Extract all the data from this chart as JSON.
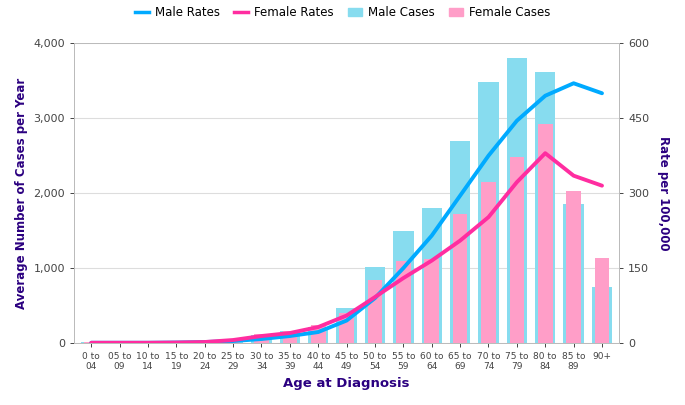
{
  "categories": [
    "0 to\n04",
    "05 to\n09",
    "10 to\n14",
    "15 to\n19",
    "20 to\n24",
    "25 to\n29",
    "30 to\n34",
    "35 to\n39",
    "40 to\n44",
    "45 to\n49",
    "50 to\n54",
    "55 to\n59",
    "60 to\n64",
    "65 to\n69",
    "70 to\n74",
    "75 to\n79",
    "80 to\n84",
    "85 to\n89",
    "90+"
  ],
  "male_cases": [
    8,
    8,
    8,
    10,
    15,
    45,
    110,
    165,
    220,
    470,
    1020,
    1500,
    1800,
    2700,
    3480,
    3800,
    3620,
    1860,
    750
  ],
  "female_cases": [
    8,
    8,
    8,
    12,
    22,
    60,
    125,
    165,
    240,
    400,
    840,
    1100,
    1120,
    1720,
    2150,
    2480,
    2920,
    2030,
    1140
  ],
  "male_rates": [
    0.5,
    0.5,
    0.5,
    1,
    2,
    4,
    8,
    14,
    22,
    45,
    90,
    150,
    215,
    295,
    375,
    445,
    495,
    520,
    500
  ],
  "female_rates": [
    0.5,
    0.5,
    0.5,
    1,
    2,
    6,
    14,
    20,
    32,
    55,
    92,
    130,
    165,
    205,
    252,
    322,
    380,
    335,
    315
  ],
  "male_bar_color": "#87DCEF",
  "female_bar_color": "#FF9EC8",
  "male_line_color": "#00AAFF",
  "female_line_color": "#FF2DA0",
  "left_ylim": [
    0,
    4000
  ],
  "right_ylim": [
    0,
    600
  ],
  "left_yticks": [
    0,
    1000,
    2000,
    3000,
    4000
  ],
  "right_yticks": [
    0,
    150,
    300,
    450,
    600
  ],
  "left_ylabel": "Average Number of Cases per Year",
  "right_ylabel": "Rate per 100,000",
  "xlabel": "Age at Diagnosis",
  "label_color": "#2B0080",
  "tick_color": "#444444",
  "background_color": "#FFFFFF",
  "grid_color": "#DDDDDD",
  "legend_items": [
    "Male Rates",
    "Female Rates",
    "Male Cases",
    "Female Cases"
  ],
  "legend_fontsize": 8.5,
  "bar_alpha": 1.0
}
